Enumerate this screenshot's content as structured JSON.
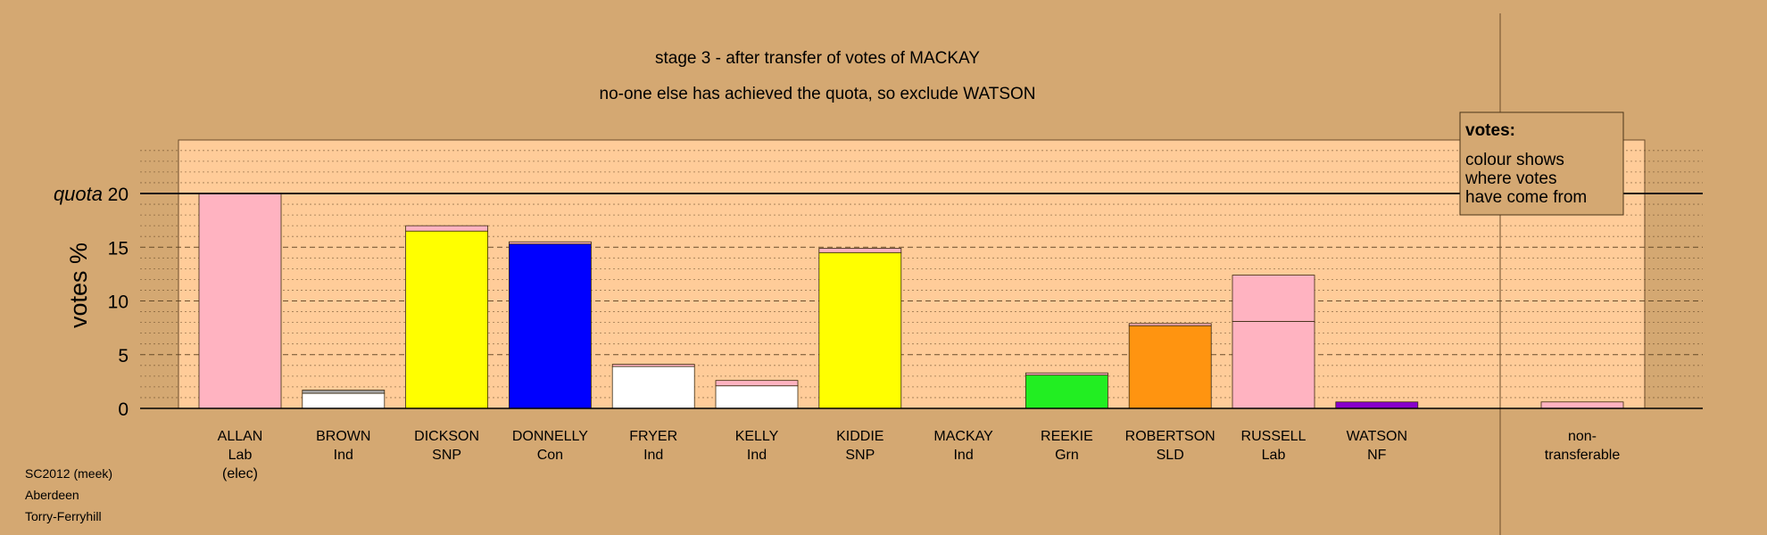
{
  "chart_data": {
    "type": "bar",
    "title": "stage 3 - after transfer of votes of MACKAY",
    "subtitle": "no-one else has achieved the quota, so exclude WATSON",
    "ylabel": "votes %",
    "ylim": [
      0,
      25
    ],
    "yticks": [
      0,
      5,
      10,
      15,
      20
    ],
    "quota": {
      "label": "quota",
      "value": 20
    },
    "legend": {
      "position": "top-right",
      "title": "votes:",
      "lines": [
        "colour shows",
        "where votes",
        "have come from"
      ]
    },
    "categories": [
      {
        "name": "ALLAN",
        "party": "Lab",
        "note": "(elec)"
      },
      {
        "name": "BROWN",
        "party": "Ind",
        "note": ""
      },
      {
        "name": "DICKSON",
        "party": "SNP",
        "note": ""
      },
      {
        "name": "DONNELLY",
        "party": "Con",
        "note": ""
      },
      {
        "name": "FRYER",
        "party": "Ind",
        "note": ""
      },
      {
        "name": "KELLY",
        "party": "Ind",
        "note": ""
      },
      {
        "name": "KIDDIE",
        "party": "SNP",
        "note": ""
      },
      {
        "name": "MACKAY",
        "party": "Ind",
        "note": ""
      },
      {
        "name": "REEKIE",
        "party": "Grn",
        "note": ""
      },
      {
        "name": "ROBERTSON",
        "party": "SLD",
        "note": ""
      },
      {
        "name": "RUSSELL",
        "party": "Lab",
        "note": ""
      },
      {
        "name": "WATSON",
        "party": "NF",
        "note": ""
      }
    ],
    "nontransferable": {
      "label1": "non-",
      "label2": "transferable",
      "segments": [
        {
          "value": 0.6,
          "color": "#ffb3c1"
        }
      ]
    },
    "bars": [
      [
        {
          "value": 20.0,
          "color": "#ffb3c1"
        }
      ],
      [
        {
          "value": 1.4,
          "color": "#ffffff"
        },
        {
          "value": 0.3,
          "color": "#a0a0a0"
        }
      ],
      [
        {
          "value": 16.5,
          "color": "#ffff00"
        },
        {
          "value": 0.5,
          "color": "#ffb3c1"
        }
      ],
      [
        {
          "value": 15.3,
          "color": "#0000ff"
        },
        {
          "value": 0.2,
          "color": "#ffb3c1"
        }
      ],
      [
        {
          "value": 3.9,
          "color": "#ffffff"
        },
        {
          "value": 0.2,
          "color": "#ffb3c1"
        }
      ],
      [
        {
          "value": 2.1,
          "color": "#ffffff"
        },
        {
          "value": 0.5,
          "color": "#ffb3c1"
        }
      ],
      [
        {
          "value": 14.5,
          "color": "#ffff00"
        },
        {
          "value": 0.4,
          "color": "#ffb3c1"
        }
      ],
      [],
      [
        {
          "value": 3.1,
          "color": "#22ee22"
        },
        {
          "value": 0.2,
          "color": "#ffb3c1"
        }
      ],
      [
        {
          "value": 7.7,
          "color": "#ff9410"
        },
        {
          "value": 0.2,
          "color": "#ffb3c1"
        }
      ],
      [
        {
          "value": 8.1,
          "color": "#ffb3c1"
        },
        {
          "value": 4.3,
          "color": "#ffb3c1"
        }
      ],
      [
        {
          "value": 0.6,
          "color": "#8800cc"
        }
      ]
    ]
  },
  "footer": [
    "SC2012 (meek)",
    "Aberdeen",
    "Torry-Ferryhill"
  ]
}
